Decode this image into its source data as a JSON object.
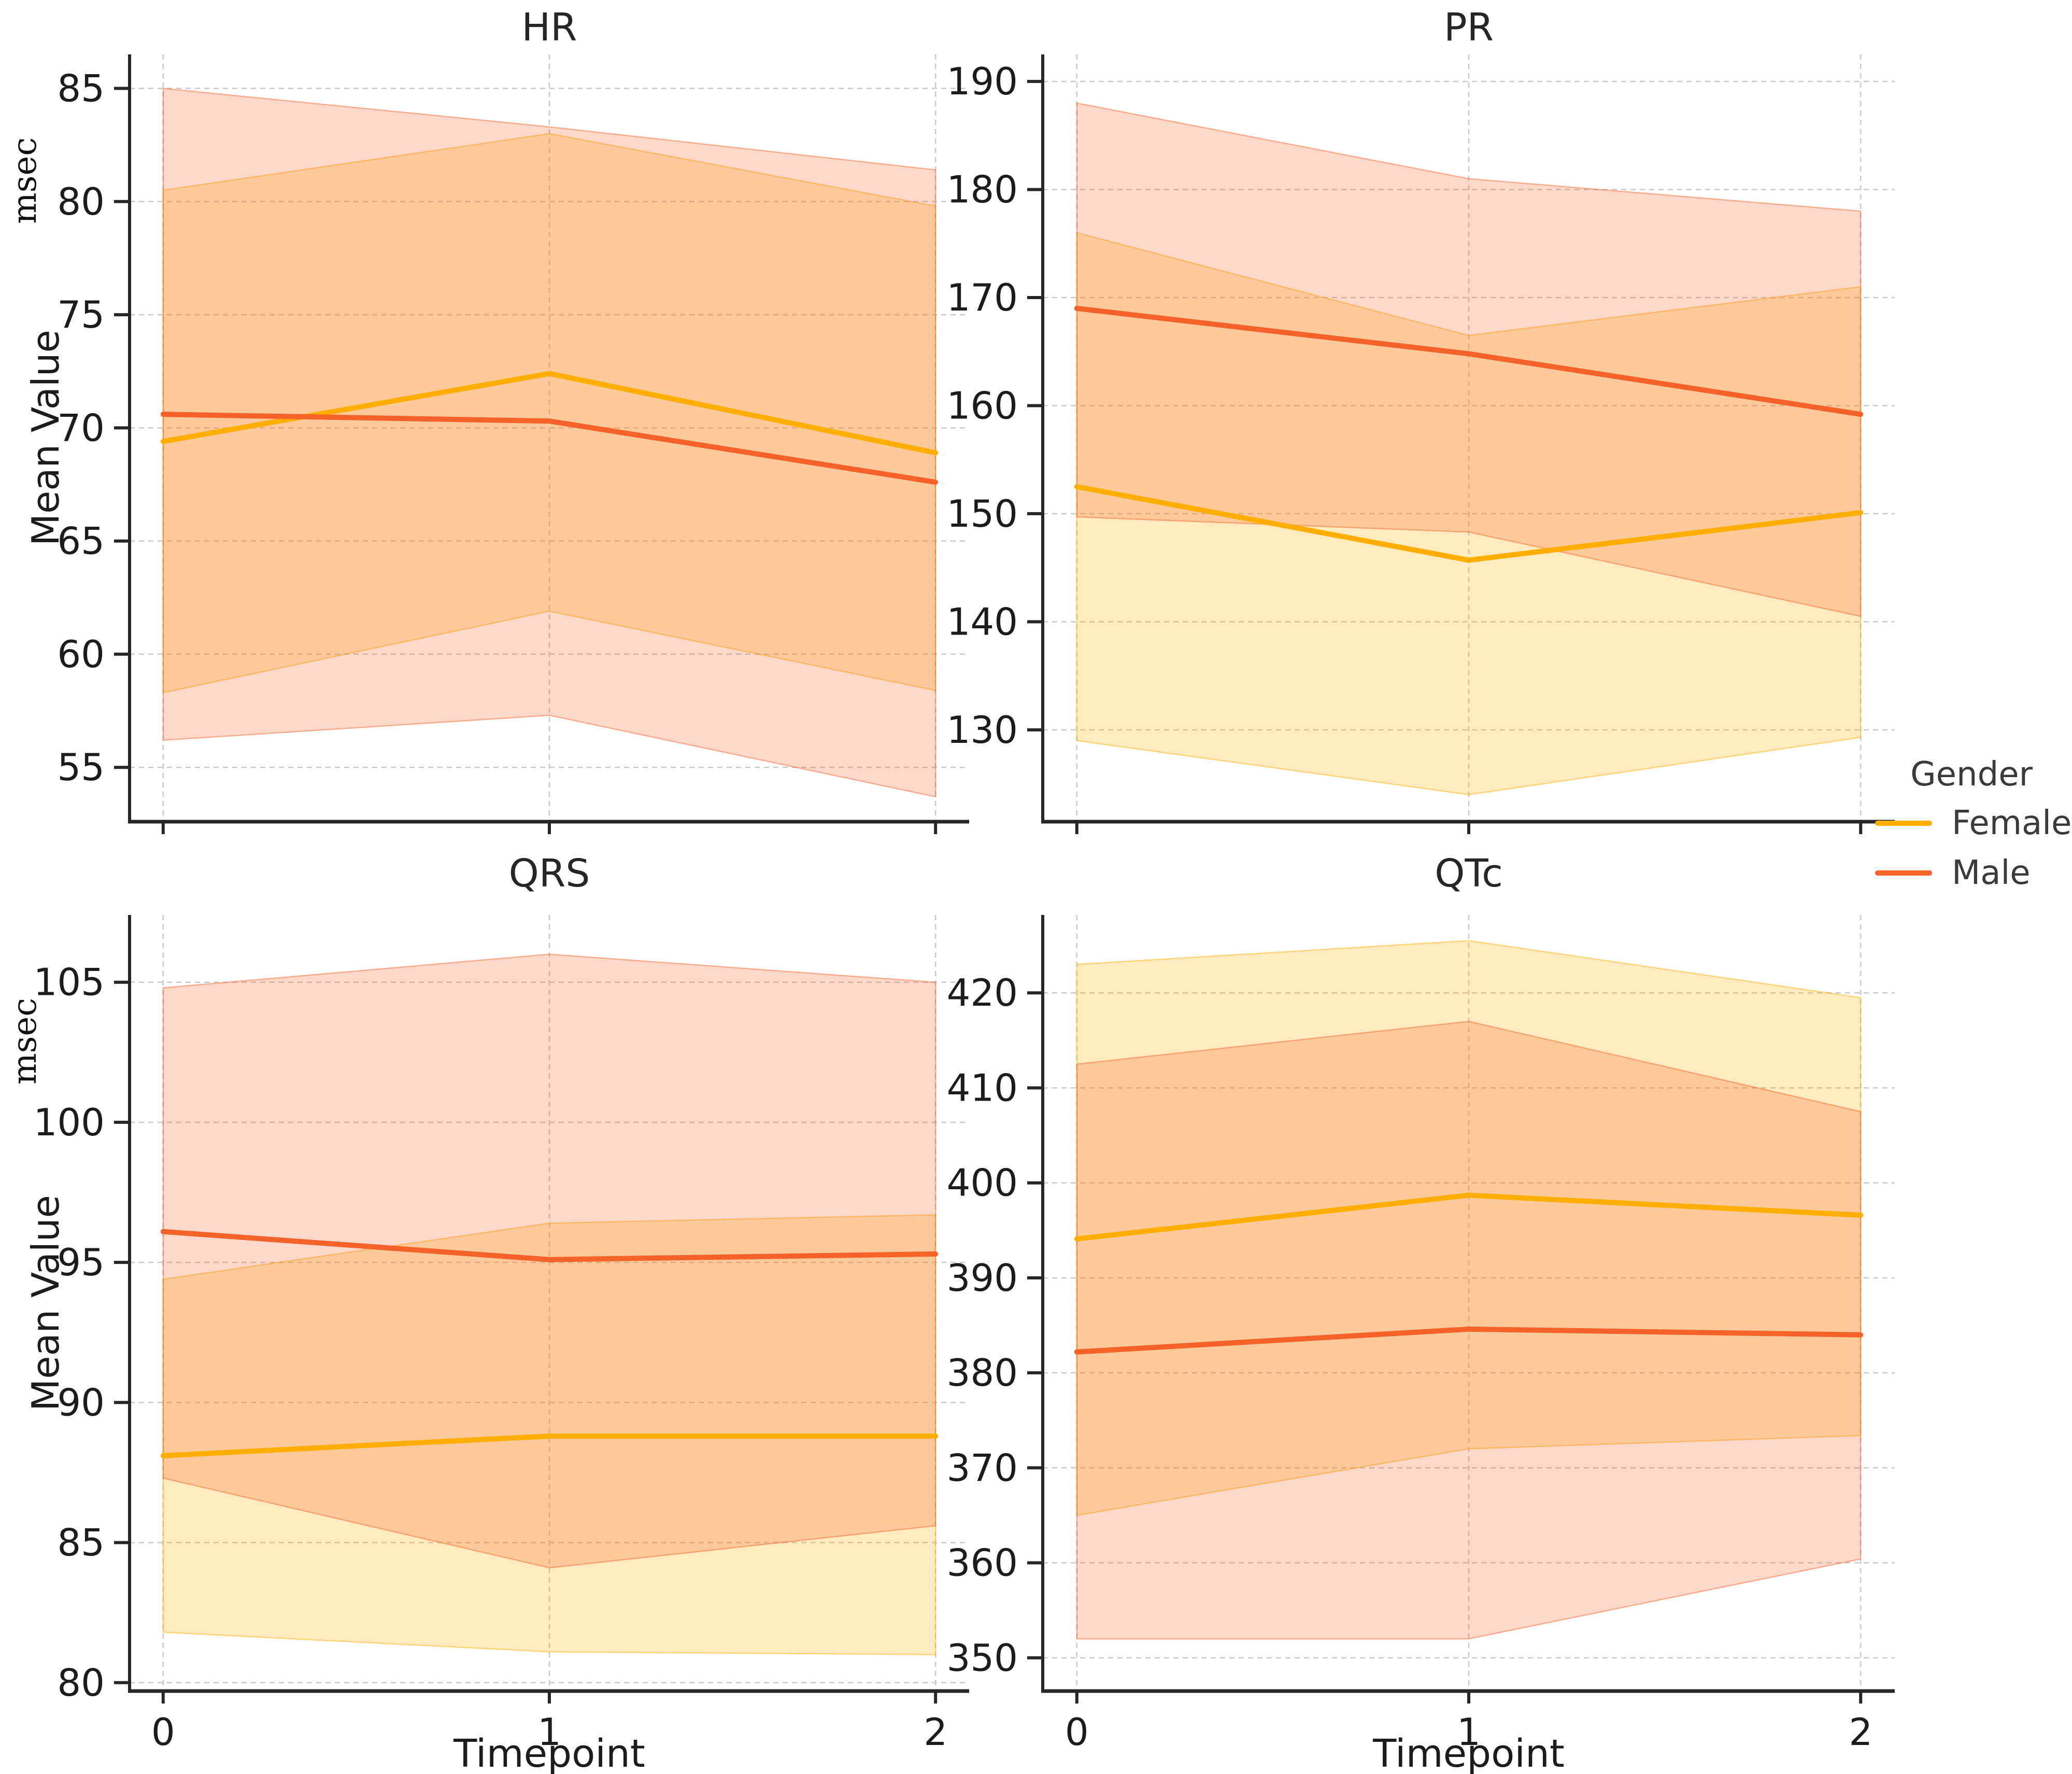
{
  "figure": {
    "background": "#ffffff",
    "grid_color": "#c9c9c9",
    "spine_color": "#262626",
    "tick_label_color": "#1c1c1c",
    "band_opacity": 0.25,
    "band_edge_opacity": 0.45
  },
  "legend": {
    "title": "Gender",
    "entries": [
      {
        "label": "Female",
        "color": "#FFAE00"
      },
      {
        "label": "Male",
        "color": "#F4622A"
      }
    ]
  },
  "chart_data": [
    {
      "id": "hr",
      "type": "line",
      "title": "HR",
      "xlabel": "",
      "ylabel": "Mean Value",
      "unit_annotation": "msec",
      "x": [
        0,
        1,
        2
      ],
      "x_tick_labels": [
        "0",
        "1",
        "2"
      ],
      "show_x_tick_labels": false,
      "ylim": [
        52.6,
        86.5
      ],
      "y_ticks": [
        85,
        80,
        75,
        70,
        65,
        60,
        55
      ],
      "grid": true,
      "legend_position": "right-outside",
      "series": [
        {
          "name": "Female",
          "color": "#FFAE00",
          "mean": [
            69.4,
            72.4,
            68.9
          ],
          "ci_lower": [
            58.3,
            61.9,
            58.4
          ],
          "ci_upper": [
            80.5,
            83.0,
            79.8
          ]
        },
        {
          "name": "Male",
          "color": "#F4622A",
          "mean": [
            70.6,
            70.3,
            67.6
          ],
          "ci_lower": [
            56.2,
            57.3,
            53.7
          ],
          "ci_upper": [
            85.0,
            83.3,
            81.4
          ]
        }
      ]
    },
    {
      "id": "pr",
      "type": "line",
      "title": "PR",
      "xlabel": "",
      "ylabel": "",
      "unit_annotation": "",
      "x": [
        0,
        1,
        2
      ],
      "x_tick_labels": [
        "0",
        "1",
        "2"
      ],
      "show_x_tick_labels": false,
      "ylim": [
        121.5,
        192.5
      ],
      "y_ticks": [
        190,
        180,
        170,
        160,
        150,
        140,
        130
      ],
      "grid": true,
      "series": [
        {
          "name": "Female",
          "color": "#FFAE00",
          "mean": [
            152.5,
            145.7,
            150.1
          ],
          "ci_lower": [
            129.0,
            124.0,
            129.3
          ],
          "ci_upper": [
            176.0,
            166.5,
            171.0
          ]
        },
        {
          "name": "Male",
          "color": "#F4622A",
          "mean": [
            169.0,
            164.8,
            159.2
          ],
          "ci_lower": [
            149.7,
            148.3,
            140.5
          ],
          "ci_upper": [
            188.0,
            181.0,
            178.0
          ]
        }
      ]
    },
    {
      "id": "qrs",
      "type": "line",
      "title": "QRS",
      "xlabel": "Timepoint",
      "ylabel": "Mean Value",
      "unit_annotation": "msec",
      "x": [
        0,
        1,
        2
      ],
      "x_tick_labels": [
        "0",
        "1",
        "2"
      ],
      "show_x_tick_labels": true,
      "ylim": [
        79.7,
        107.4
      ],
      "y_ticks": [
        105,
        100,
        95,
        90,
        85,
        80
      ],
      "grid": true,
      "series": [
        {
          "name": "Female",
          "color": "#FFAE00",
          "mean": [
            88.1,
            88.8,
            88.8
          ],
          "ci_lower": [
            81.8,
            81.1,
            81.0
          ],
          "ci_upper": [
            94.4,
            96.4,
            96.7
          ]
        },
        {
          "name": "Male",
          "color": "#F4622A",
          "mean": [
            96.1,
            95.1,
            95.3
          ],
          "ci_lower": [
            87.3,
            84.1,
            85.6
          ],
          "ci_upper": [
            104.8,
            106.0,
            105.0
          ]
        }
      ]
    },
    {
      "id": "qtc",
      "type": "line",
      "title": "QTc",
      "xlabel": "Timepoint",
      "ylabel": "",
      "unit_annotation": "",
      "x": [
        0,
        1,
        2
      ],
      "x_tick_labels": [
        "0",
        "1",
        "2"
      ],
      "show_x_tick_labels": true,
      "ylim": [
        346.5,
        428.2
      ],
      "y_ticks": [
        420,
        410,
        400,
        390,
        380,
        370,
        360,
        350
      ],
      "grid": true,
      "series": [
        {
          "name": "Female",
          "color": "#FFAE00",
          "mean": [
            394.1,
            398.7,
            396.6
          ],
          "ci_lower": [
            365.0,
            372.0,
            373.4
          ],
          "ci_upper": [
            423.0,
            425.5,
            419.5
          ]
        },
        {
          "name": "Male",
          "color": "#F4622A",
          "mean": [
            382.2,
            384.6,
            384.0
          ],
          "ci_lower": [
            352.0,
            352.0,
            360.4
          ],
          "ci_upper": [
            412.5,
            417.0,
            407.5
          ]
        }
      ]
    }
  ]
}
